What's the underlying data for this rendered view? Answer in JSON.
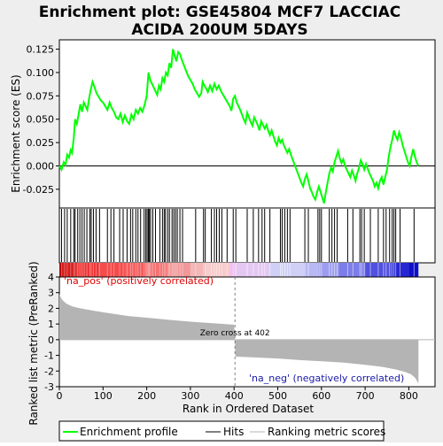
{
  "chart_data": {
    "type": "line",
    "title_line1": "Enrichment plot: GSE45804 MCF7 LACCIAC",
    "title_line2": "ACIDA 200UM 5DAYS",
    "es_panel": {
      "ylabel": "Enrichment score (ES)",
      "ylim": [
        -0.045,
        0.135
      ],
      "yticks": [
        -0.025,
        0.0,
        0.025,
        0.05,
        0.075,
        0.1,
        0.125
      ],
      "ytick_labels": [
        "-0.025",
        "0.000",
        "0.025",
        "0.050",
        "0.075",
        "0.100",
        "0.125"
      ],
      "line_color": "#00ff00",
      "points": [
        [
          0,
          0.0
        ],
        [
          5,
          -0.004
        ],
        [
          10,
          0.004
        ],
        [
          14,
          0.001
        ],
        [
          18,
          0.012
        ],
        [
          22,
          0.009
        ],
        [
          26,
          0.017
        ],
        [
          29,
          0.014
        ],
        [
          33,
          0.03
        ],
        [
          36,
          0.05
        ],
        [
          40,
          0.045
        ],
        [
          44,
          0.055
        ],
        [
          48,
          0.066
        ],
        [
          52,
          0.058
        ],
        [
          56,
          0.068
        ],
        [
          60,
          0.064
        ],
        [
          64,
          0.06
        ],
        [
          68,
          0.072
        ],
        [
          72,
          0.082
        ],
        [
          76,
          0.09
        ],
        [
          80,
          0.085
        ],
        [
          85,
          0.078
        ],
        [
          90,
          0.074
        ],
        [
          95,
          0.07
        ],
        [
          100,
          0.068
        ],
        [
          105,
          0.064
        ],
        [
          110,
          0.06
        ],
        [
          115,
          0.068
        ],
        [
          120,
          0.062
        ],
        [
          125,
          0.058
        ],
        [
          130,
          0.052
        ],
        [
          135,
          0.05
        ],
        [
          140,
          0.056
        ],
        [
          145,
          0.047
        ],
        [
          150,
          0.054
        ],
        [
          155,
          0.048
        ],
        [
          160,
          0.045
        ],
        [
          165,
          0.055
        ],
        [
          170,
          0.05
        ],
        [
          175,
          0.06
        ],
        [
          180,
          0.056
        ],
        [
          185,
          0.062
        ],
        [
          190,
          0.058
        ],
        [
          195,
          0.065
        ],
        [
          200,
          0.075
        ],
        [
          204,
          0.1
        ],
        [
          208,
          0.092
        ],
        [
          212,
          0.088
        ],
        [
          216,
          0.084
        ],
        [
          220,
          0.08
        ],
        [
          224,
          0.076
        ],
        [
          228,
          0.086
        ],
        [
          232,
          0.082
        ],
        [
          236,
          0.094
        ],
        [
          240,
          0.09
        ],
        [
          244,
          0.1
        ],
        [
          248,
          0.097
        ],
        [
          252,
          0.11
        ],
        [
          256,
          0.105
        ],
        [
          260,
          0.125
        ],
        [
          264,
          0.118
        ],
        [
          268,
          0.112
        ],
        [
          272,
          0.122
        ],
        [
          276,
          0.12
        ],
        [
          280,
          0.114
        ],
        [
          285,
          0.108
        ],
        [
          290,
          0.102
        ],
        [
          295,
          0.096
        ],
        [
          300,
          0.092
        ],
        [
          305,
          0.088
        ],
        [
          310,
          0.082
        ],
        [
          315,
          0.078
        ],
        [
          320,
          0.074
        ],
        [
          325,
          0.078
        ],
        [
          328,
          0.09
        ],
        [
          332,
          0.086
        ],
        [
          336,
          0.083
        ],
        [
          340,
          0.079
        ],
        [
          345,
          0.086
        ],
        [
          350,
          0.08
        ],
        [
          355,
          0.088
        ],
        [
          360,
          0.082
        ],
        [
          365,
          0.086
        ],
        [
          370,
          0.08
        ],
        [
          375,
          0.076
        ],
        [
          380,
          0.072
        ],
        [
          385,
          0.068
        ],
        [
          390,
          0.064
        ],
        [
          394,
          0.059
        ],
        [
          398,
          0.072
        ],
        [
          402,
          0.075
        ],
        [
          406,
          0.068
        ],
        [
          410,
          0.064
        ],
        [
          414,
          0.06
        ],
        [
          418,
          0.055
        ],
        [
          422,
          0.05
        ],
        [
          426,
          0.046
        ],
        [
          430,
          0.057
        ],
        [
          434,
          0.052
        ],
        [
          438,
          0.047
        ],
        [
          442,
          0.043
        ],
        [
          446,
          0.052
        ],
        [
          450,
          0.048
        ],
        [
          454,
          0.044
        ],
        [
          458,
          0.038
        ],
        [
          462,
          0.048
        ],
        [
          466,
          0.044
        ],
        [
          470,
          0.04
        ],
        [
          474,
          0.044
        ],
        [
          478,
          0.038
        ],
        [
          482,
          0.033
        ],
        [
          486,
          0.038
        ],
        [
          490,
          0.032
        ],
        [
          494,
          0.026
        ],
        [
          498,
          0.022
        ],
        [
          502,
          0.03
        ],
        [
          506,
          0.025
        ],
        [
          510,
          0.028
        ],
        [
          514,
          0.022
        ],
        [
          518,
          0.018
        ],
        [
          522,
          0.014
        ],
        [
          526,
          0.018
        ],
        [
          530,
          0.012
        ],
        [
          534,
          0.007
        ],
        [
          538,
          0.002
        ],
        [
          542,
          -0.003
        ],
        [
          546,
          -0.008
        ],
        [
          550,
          -0.013
        ],
        [
          554,
          -0.018
        ],
        [
          558,
          -0.022
        ],
        [
          562,
          -0.014
        ],
        [
          566,
          -0.009
        ],
        [
          570,
          -0.016
        ],
        [
          574,
          -0.024
        ],
        [
          578,
          -0.028
        ],
        [
          582,
          -0.033
        ],
        [
          586,
          -0.036
        ],
        [
          590,
          -0.028
        ],
        [
          594,
          -0.022
        ],
        [
          598,
          -0.028
        ],
        [
          602,
          -0.034
        ],
        [
          606,
          -0.04
        ],
        [
          610,
          -0.028
        ],
        [
          614,
          -0.018
        ],
        [
          618,
          -0.008
        ],
        [
          622,
          -0.002
        ],
        [
          626,
          -0.006
        ],
        [
          630,
          0.004
        ],
        [
          634,
          0.01
        ],
        [
          638,
          0.016
        ],
        [
          642,
          0.008
        ],
        [
          646,
          0.003
        ],
        [
          650,
          0.007
        ],
        [
          654,
          0.0
        ],
        [
          658,
          -0.004
        ],
        [
          662,
          -0.008
        ],
        [
          666,
          -0.012
        ],
        [
          670,
          -0.005
        ],
        [
          674,
          -0.01
        ],
        [
          678,
          -0.016
        ],
        [
          682,
          -0.008
        ],
        [
          686,
          -0.002
        ],
        [
          690,
          0.006
        ],
        [
          694,
          0.002
        ],
        [
          698,
          -0.004
        ],
        [
          702,
          0.002
        ],
        [
          706,
          -0.003
        ],
        [
          710,
          -0.008
        ],
        [
          714,
          -0.012
        ],
        [
          718,
          -0.016
        ],
        [
          722,
          -0.022
        ],
        [
          726,
          -0.018
        ],
        [
          730,
          -0.024
        ],
        [
          734,
          -0.016
        ],
        [
          738,
          -0.012
        ],
        [
          742,
          -0.02
        ],
        [
          746,
          -0.012
        ],
        [
          750,
          -0.004
        ],
        [
          754,
          0.01
        ],
        [
          758,
          0.02
        ],
        [
          762,
          0.028
        ],
        [
          766,
          0.038
        ],
        [
          770,
          0.032
        ],
        [
          774,
          0.028
        ],
        [
          778,
          0.036
        ],
        [
          782,
          0.03
        ],
        [
          786,
          0.022
        ],
        [
          790,
          0.016
        ],
        [
          794,
          0.01
        ],
        [
          798,
          0.004
        ],
        [
          802,
          0.0
        ],
        [
          806,
          0.01
        ],
        [
          810,
          0.018
        ],
        [
          814,
          0.01
        ],
        [
          818,
          0.004
        ],
        [
          822,
          0.0
        ]
      ]
    },
    "hits": [
      5,
      12,
      18,
      26,
      33,
      36,
      42,
      47,
      52,
      57,
      63,
      70,
      73,
      78,
      84,
      92,
      110,
      118,
      125,
      138,
      146,
      155,
      163,
      168,
      175,
      180,
      186,
      194,
      198,
      201,
      204,
      206,
      209,
      214,
      220,
      230,
      236,
      240,
      243,
      248,
      252,
      258,
      262,
      266,
      270,
      276,
      282,
      312,
      330,
      334,
      348,
      355,
      360,
      366,
      372,
      384,
      398,
      404,
      430,
      444,
      456,
      464,
      470,
      482,
      506,
      510,
      516,
      522,
      528,
      562,
      570,
      592,
      596,
      600,
      618,
      624,
      630,
      636,
      660,
      672,
      688,
      692,
      698,
      712,
      730,
      742,
      748,
      756,
      762,
      766,
      770,
      780,
      812
    ],
    "ranked_panel": {
      "ylabel": "Ranked list metric (PreRanked)",
      "ylim": [
        -3,
        4
      ],
      "yticks": [
        -3,
        -2,
        -1,
        0,
        1,
        2,
        3,
        4
      ],
      "ytick_labels": [
        "-3",
        "-2",
        "-1",
        "0",
        "1",
        "2",
        "3",
        "4"
      ],
      "xlabel": "Rank in Ordered Dataset",
      "xlim": [
        0,
        860
      ],
      "xticks": [
        0,
        100,
        200,
        300,
        400,
        500,
        600,
        700,
        800
      ],
      "xtick_labels": [
        "0",
        "100",
        "200",
        "300",
        "400",
        "500",
        "600",
        "700",
        "800"
      ],
      "fill_color": "#b4b4b4",
      "metric_points": [
        [
          0,
          2.9
        ],
        [
          2,
          2.78
        ],
        [
          5,
          2.6
        ],
        [
          10,
          2.45
        ],
        [
          15,
          2.33
        ],
        [
          20,
          2.24
        ],
        [
          30,
          2.12
        ],
        [
          45,
          2.02
        ],
        [
          60,
          1.94
        ],
        [
          80,
          1.84
        ],
        [
          100,
          1.75
        ],
        [
          130,
          1.62
        ],
        [
          160,
          1.5
        ],
        [
          200,
          1.4
        ],
        [
          250,
          1.27
        ],
        [
          300,
          1.15
        ],
        [
          350,
          1.05
        ],
        [
          400,
          0.96
        ],
        [
          402,
          0.0
        ],
        [
          403,
          -1.08
        ],
        [
          440,
          -1.12
        ],
        [
          500,
          -1.2
        ],
        [
          550,
          -1.3
        ],
        [
          600,
          -1.38
        ],
        [
          650,
          -1.46
        ],
        [
          700,
          -1.6
        ],
        [
          740,
          -1.74
        ],
        [
          770,
          -1.9
        ],
        [
          790,
          -2.05
        ],
        [
          805,
          -2.2
        ],
        [
          815,
          -2.45
        ],
        [
          822,
          -2.8
        ]
      ],
      "zero_cross_rank": 402,
      "zero_cross_label": "Zero cross at 402",
      "pos_label": "'na_pos' (positively correlated)",
      "neg_label": "'na_neg' (negatively correlated)",
      "pos_label_color": "#e00000",
      "neg_label_color": "#1a1aaa"
    },
    "heat_bar": {
      "colors_from_rank_0": [
        "#b40000",
        "#d81d1d",
        "#ef3535",
        "#f64b4b",
        "#f65c5c",
        "#f57272",
        "#f29898",
        "#f3b7b7",
        "#f7cccc",
        "#f0c0f2",
        "#e4c8f2",
        "#d0d0f6",
        "#b8b8f4",
        "#9d9df0",
        "#7c7cea",
        "#5151e0",
        "#2626d3",
        "#0e0ec7"
      ],
      "segment_rank_edges": [
        0,
        6,
        40,
        90,
        150,
        200,
        250,
        300,
        333,
        390,
        402,
        480,
        560,
        590,
        640,
        700,
        760,
        800,
        822
      ]
    },
    "legend": {
      "items": [
        "Enrichment profile",
        "Hits",
        "Ranking metric scores"
      ],
      "colors": [
        "#00ff00",
        "#000000",
        "#b4b4b4"
      ]
    }
  }
}
